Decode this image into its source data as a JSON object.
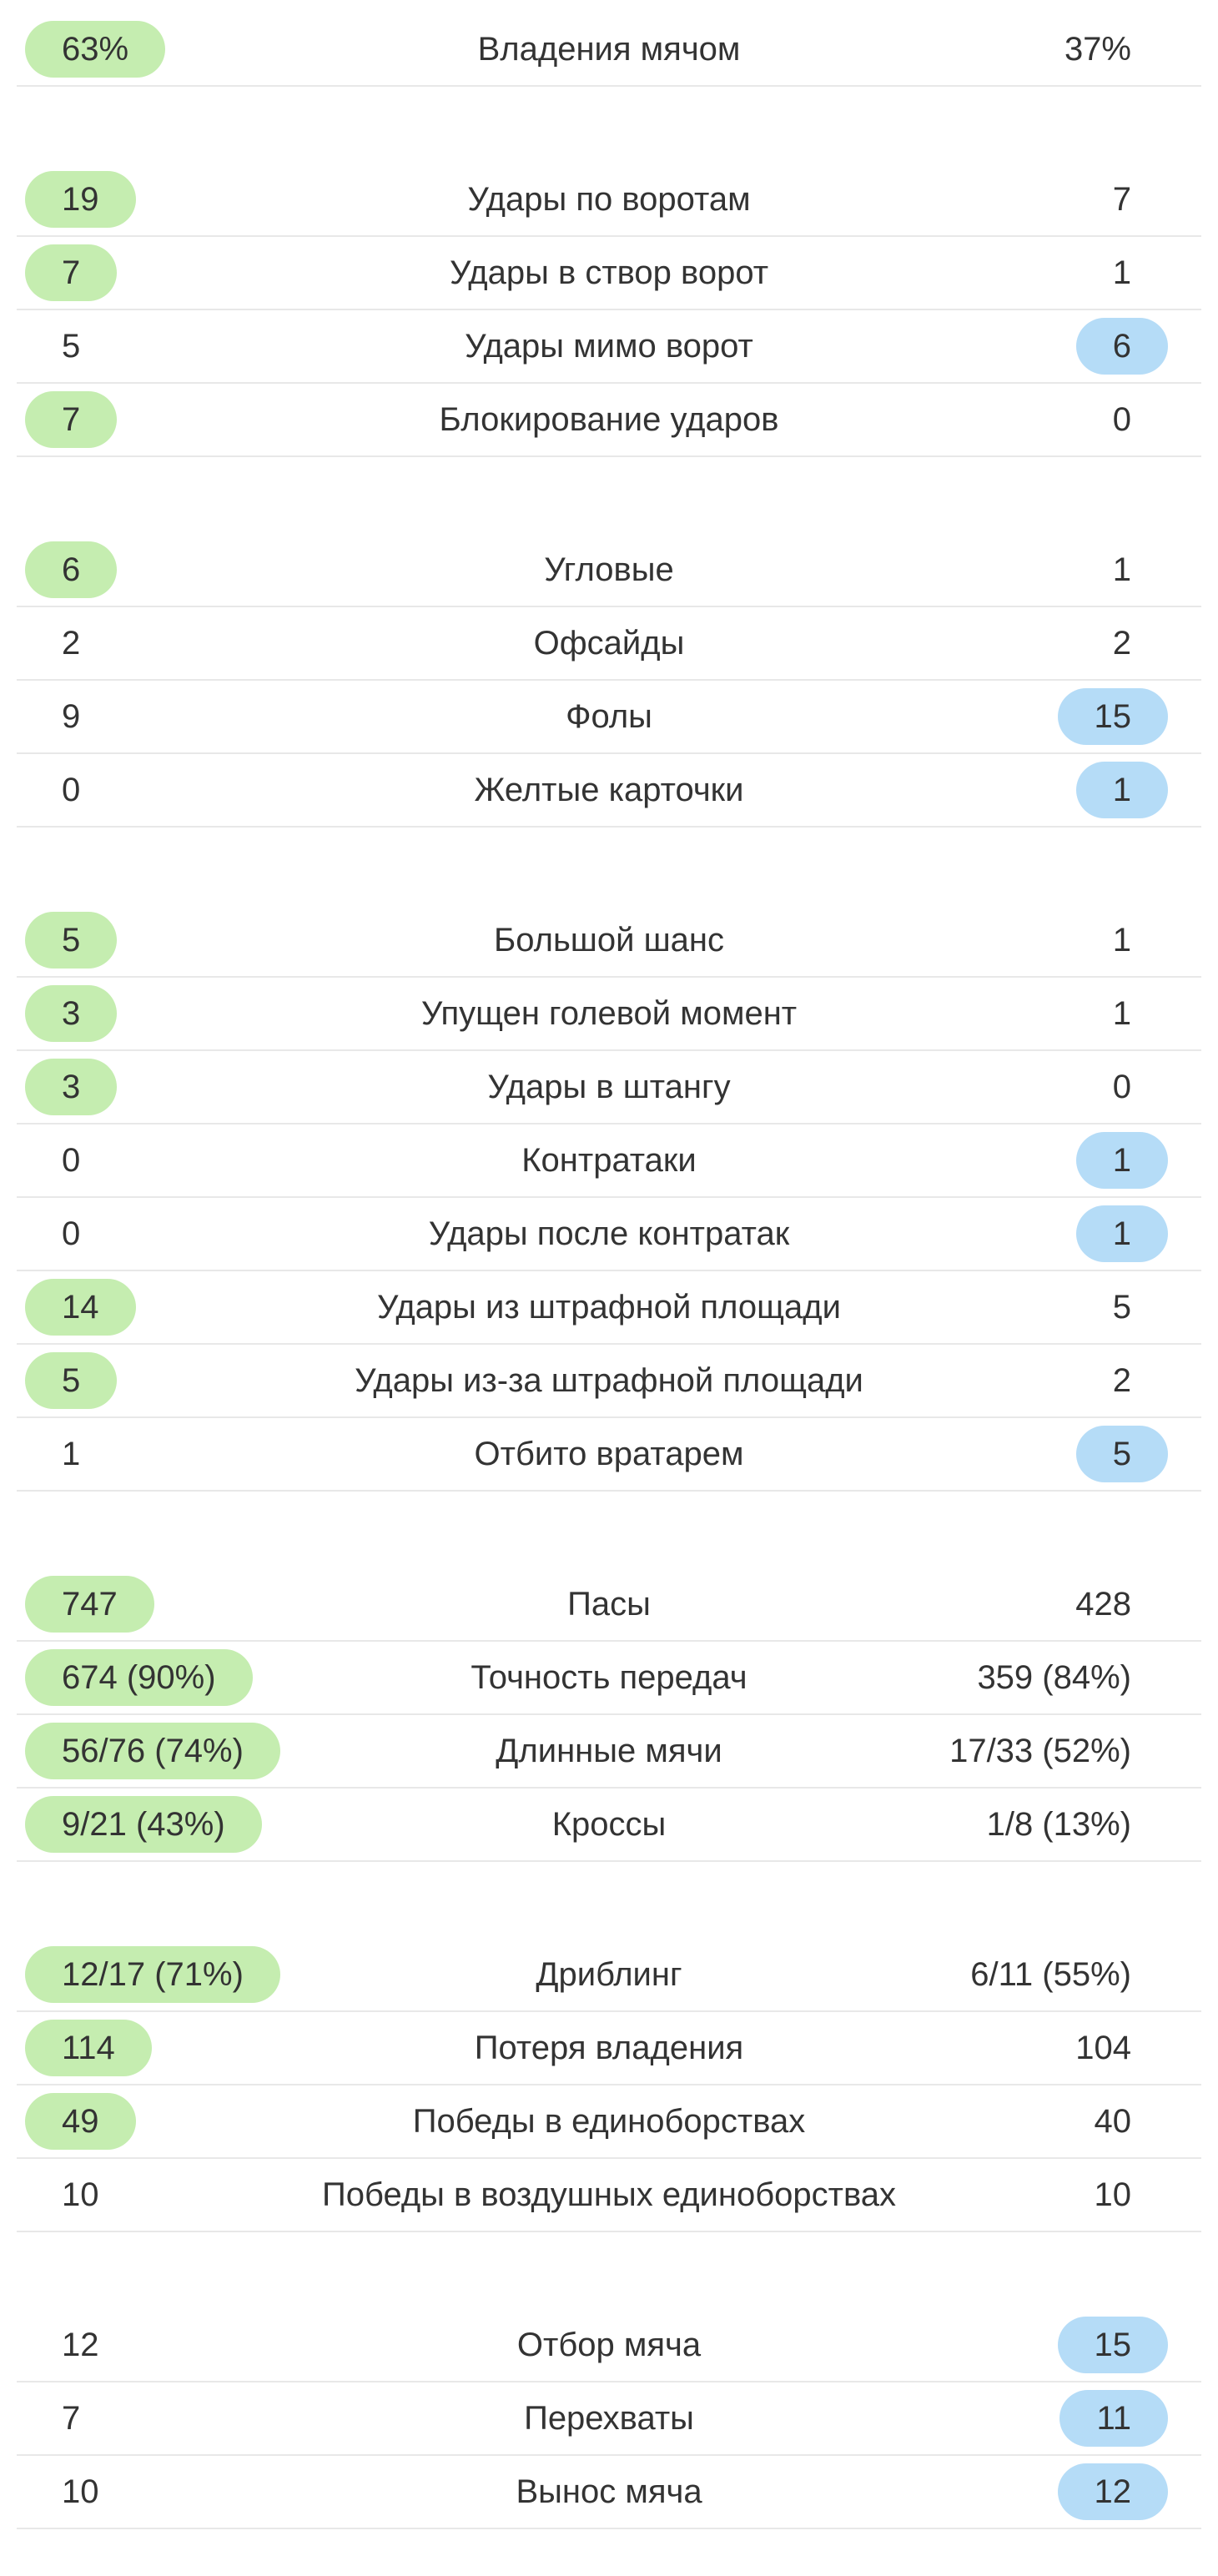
{
  "colors": {
    "home_highlight": "#c5edb0",
    "away_highlight": "#b5dcf7",
    "divider": "#e8e8e8",
    "text": "#333333"
  },
  "groups": [
    {
      "rows": [
        {
          "label": "Владения мячом",
          "home": "63%",
          "away": "37%",
          "leader": "home"
        }
      ]
    },
    {
      "rows": [
        {
          "label": "Удары по воротам",
          "home": "19",
          "away": "7",
          "leader": "home"
        },
        {
          "label": "Удары в створ ворот",
          "home": "7",
          "away": "1",
          "leader": "home"
        },
        {
          "label": "Удары мимо ворот",
          "home": "5",
          "away": "6",
          "leader": "away"
        },
        {
          "label": "Блокирование ударов",
          "home": "7",
          "away": "0",
          "leader": "home"
        }
      ]
    },
    {
      "rows": [
        {
          "label": "Угловые",
          "home": "6",
          "away": "1",
          "leader": "home"
        },
        {
          "label": "Офсайды",
          "home": "2",
          "away": "2",
          "leader": "none"
        },
        {
          "label": "Фолы",
          "home": "9",
          "away": "15",
          "leader": "away"
        },
        {
          "label": "Желтые карточки",
          "home": "0",
          "away": "1",
          "leader": "away"
        }
      ]
    },
    {
      "rows": [
        {
          "label": "Большой шанс",
          "home": "5",
          "away": "1",
          "leader": "home"
        },
        {
          "label": "Упущен голевой момент",
          "home": "3",
          "away": "1",
          "leader": "home"
        },
        {
          "label": "Удары в штангу",
          "home": "3",
          "away": "0",
          "leader": "home"
        },
        {
          "label": "Контратаки",
          "home": "0",
          "away": "1",
          "leader": "away"
        },
        {
          "label": "Удары после контратак",
          "home": "0",
          "away": "1",
          "leader": "away"
        },
        {
          "label": "Удары из штрафной площади",
          "home": "14",
          "away": "5",
          "leader": "home"
        },
        {
          "label": "Удары из-за штрафной площади",
          "home": "5",
          "away": "2",
          "leader": "home"
        },
        {
          "label": "Отбито вратарем",
          "home": "1",
          "away": "5",
          "leader": "away"
        }
      ]
    },
    {
      "rows": [
        {
          "label": "Пасы",
          "home": "747",
          "away": "428",
          "leader": "home"
        },
        {
          "label": "Точность передач",
          "home": "674 (90%)",
          "away": "359 (84%)",
          "leader": "home"
        },
        {
          "label": "Длинные мячи",
          "home": "56/76 (74%)",
          "away": "17/33 (52%)",
          "leader": "home"
        },
        {
          "label": "Кроссы",
          "home": "9/21 (43%)",
          "away": "1/8 (13%)",
          "leader": "home"
        }
      ]
    },
    {
      "rows": [
        {
          "label": "Дриблинг",
          "home": "12/17 (71%)",
          "away": "6/11 (55%)",
          "leader": "home"
        },
        {
          "label": "Потеря владения",
          "home": "114",
          "away": "104",
          "leader": "home"
        },
        {
          "label": "Победы в единоборствах",
          "home": "49",
          "away": "40",
          "leader": "home"
        },
        {
          "label": "Победы в воздушных единоборствах",
          "home": "10",
          "away": "10",
          "leader": "none"
        }
      ]
    },
    {
      "rows": [
        {
          "label": "Отбор мяча",
          "home": "12",
          "away": "15",
          "leader": "away"
        },
        {
          "label": "Перехваты",
          "home": "7",
          "away": "11",
          "leader": "away"
        },
        {
          "label": "Вынос мяча",
          "home": "10",
          "away": "12",
          "leader": "away"
        }
      ]
    }
  ]
}
